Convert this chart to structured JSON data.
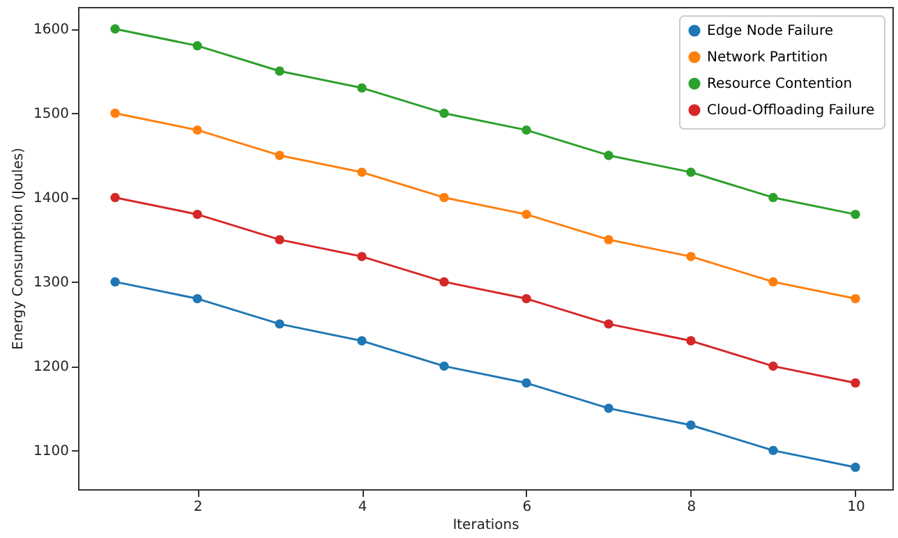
{
  "chart_data": {
    "type": "line",
    "xlabel": "Iterations",
    "ylabel": "Energy Consumption (Joules)",
    "x": [
      1,
      2,
      3,
      4,
      5,
      6,
      7,
      8,
      9,
      10
    ],
    "series": [
      {
        "name": "Edge Node Failure",
        "color": "#1f77b4",
        "values": [
          1300,
          1280,
          1250,
          1230,
          1200,
          1180,
          1150,
          1130,
          1100,
          1080
        ]
      },
      {
        "name": "Network Partition",
        "color": "#ff7f0e",
        "values": [
          1500,
          1480,
          1450,
          1430,
          1400,
          1380,
          1350,
          1330,
          1300,
          1280
        ]
      },
      {
        "name": "Resource Contention",
        "color": "#2ca02c",
        "values": [
          1600,
          1580,
          1550,
          1530,
          1500,
          1480,
          1450,
          1430,
          1400,
          1380
        ]
      },
      {
        "name": "Cloud-Offloading Failure",
        "color": "#d62728",
        "values": [
          1400,
          1380,
          1350,
          1330,
          1300,
          1280,
          1250,
          1230,
          1200,
          1180
        ]
      }
    ],
    "xlim": [
      0.55,
      10.45
    ],
    "ylim": [
      1054,
      1626
    ],
    "xticks": [
      2,
      4,
      6,
      8,
      10
    ],
    "yticks": [
      1100,
      1200,
      1300,
      1400,
      1500,
      1600
    ],
    "grid": false,
    "legend": "top right",
    "marker": "circle",
    "line_style": "solid"
  }
}
